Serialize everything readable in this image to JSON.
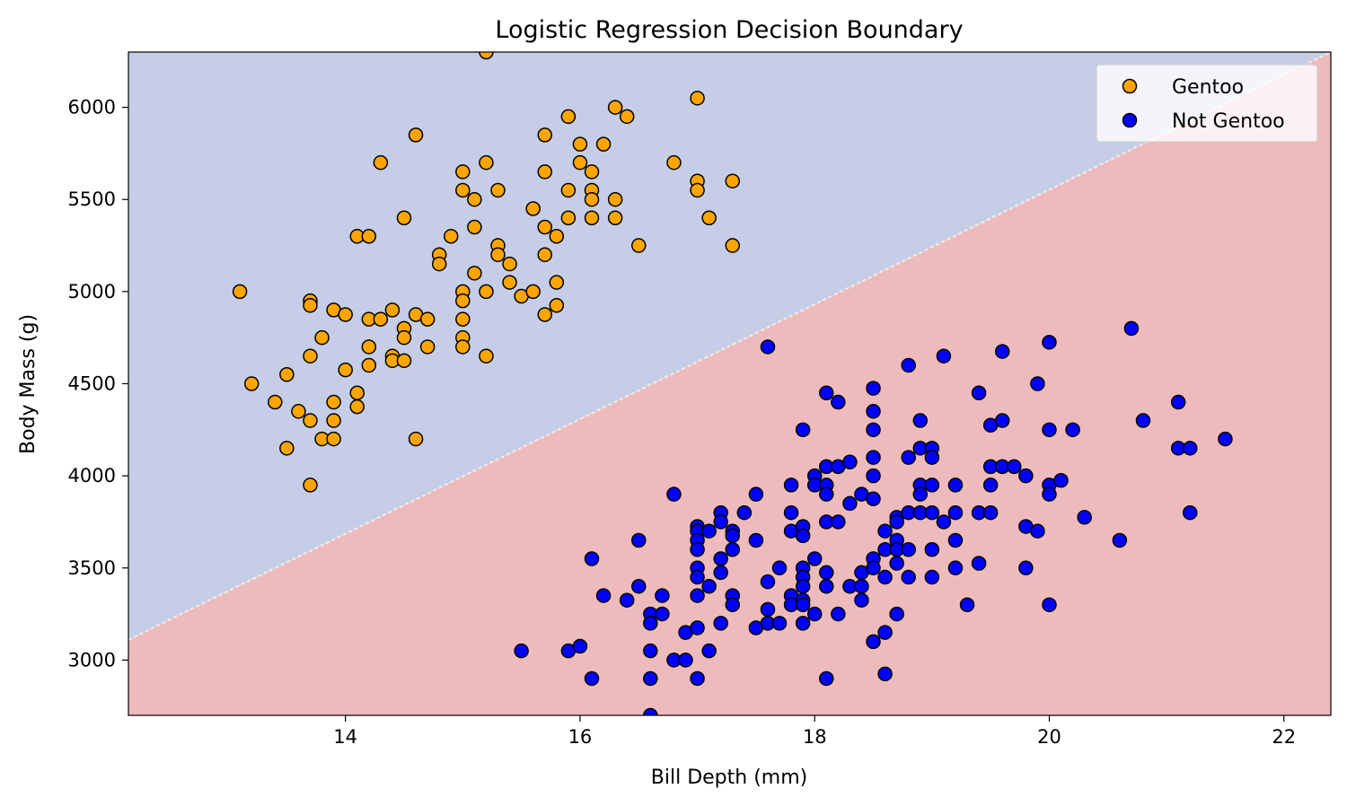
{
  "chart_data": {
    "type": "scatter",
    "title": "Logistic Regression Decision Boundary",
    "xlabel": "Bill Depth (mm)",
    "ylabel": "Body Mass (g)",
    "xlim": [
      12.15,
      22.4
    ],
    "ylim": [
      2700,
      6300
    ],
    "x_ticks": [
      14,
      16,
      18,
      20,
      22
    ],
    "y_ticks": [
      3000,
      3500,
      4000,
      4500,
      5000,
      5500,
      6000
    ],
    "grid": false,
    "legend_position": "top-right",
    "decision_boundary": {
      "line_points": [
        [
          12.15,
          3110
        ],
        [
          22.4,
          6300
        ]
      ],
      "region_above_color": "#c5cee6",
      "region_below_color": "#eebbbc"
    },
    "series": [
      {
        "name": "Gentoo",
        "color": "#ffa500",
        "edgecolor": "#000000",
        "points": [
          [
            13.1,
            5000
          ],
          [
            13.2,
            4500
          ],
          [
            13.4,
            4400
          ],
          [
            13.5,
            4550
          ],
          [
            13.5,
            4150
          ],
          [
            13.6,
            4350
          ],
          [
            13.7,
            4950
          ],
          [
            13.7,
            4925
          ],
          [
            13.7,
            4650
          ],
          [
            13.7,
            4300
          ],
          [
            13.7,
            3950
          ],
          [
            13.8,
            4750
          ],
          [
            13.8,
            4200
          ],
          [
            13.9,
            4900
          ],
          [
            13.9,
            4400
          ],
          [
            13.9,
            4300
          ],
          [
            13.9,
            4200
          ],
          [
            14.0,
            4875
          ],
          [
            14.0,
            4575
          ],
          [
            14.1,
            5300
          ],
          [
            14.1,
            4450
          ],
          [
            14.1,
            4375
          ],
          [
            14.2,
            5300
          ],
          [
            14.2,
            4850
          ],
          [
            14.2,
            4700
          ],
          [
            14.2,
            4600
          ],
          [
            14.3,
            5700
          ],
          [
            14.3,
            4850
          ],
          [
            14.4,
            4900
          ],
          [
            14.4,
            4650
          ],
          [
            14.4,
            4625
          ],
          [
            14.5,
            5400
          ],
          [
            14.5,
            4800
          ],
          [
            14.5,
            4750
          ],
          [
            14.5,
            4625
          ],
          [
            14.6,
            5850
          ],
          [
            14.6,
            4875
          ],
          [
            14.6,
            4200
          ],
          [
            14.7,
            4850
          ],
          [
            14.7,
            4700
          ],
          [
            14.8,
            5200
          ],
          [
            14.8,
            5150
          ],
          [
            14.9,
            5300
          ],
          [
            15.0,
            5650
          ],
          [
            15.0,
            5550
          ],
          [
            15.0,
            5000
          ],
          [
            15.0,
            4950
          ],
          [
            15.0,
            4850
          ],
          [
            15.0,
            4750
          ],
          [
            15.0,
            4700
          ],
          [
            15.1,
            5500
          ],
          [
            15.1,
            5350
          ],
          [
            15.1,
            5100
          ],
          [
            15.2,
            6300
          ],
          [
            15.2,
            5700
          ],
          [
            15.2,
            5000
          ],
          [
            15.2,
            4650
          ],
          [
            15.3,
            5550
          ],
          [
            15.3,
            5250
          ],
          [
            15.3,
            5200
          ],
          [
            15.4,
            5150
          ],
          [
            15.4,
            5050
          ],
          [
            15.5,
            4975
          ],
          [
            15.6,
            5450
          ],
          [
            15.6,
            5000
          ],
          [
            15.7,
            5850
          ],
          [
            15.7,
            5650
          ],
          [
            15.7,
            5350
          ],
          [
            15.7,
            5200
          ],
          [
            15.7,
            4875
          ],
          [
            15.8,
            5300
          ],
          [
            15.8,
            5050
          ],
          [
            15.8,
            4925
          ],
          [
            15.9,
            5950
          ],
          [
            15.9,
            5550
          ],
          [
            15.9,
            5400
          ],
          [
            16.0,
            5800
          ],
          [
            16.0,
            5700
          ],
          [
            16.1,
            5650
          ],
          [
            16.1,
            5550
          ],
          [
            16.1,
            5500
          ],
          [
            16.1,
            5400
          ],
          [
            16.2,
            5800
          ],
          [
            16.3,
            6000
          ],
          [
            16.3,
            5500
          ],
          [
            16.3,
            5400
          ],
          [
            16.4,
            5950
          ],
          [
            16.5,
            5250
          ],
          [
            16.8,
            5700
          ],
          [
            17.0,
            6050
          ],
          [
            17.0,
            5600
          ],
          [
            17.0,
            5550
          ],
          [
            17.1,
            5400
          ],
          [
            17.3,
            5600
          ],
          [
            17.3,
            5250
          ]
        ]
      },
      {
        "name": "Not Gentoo",
        "color": "#0000ff",
        "edgecolor": "#000000",
        "points": [
          [
            15.5,
            3050
          ],
          [
            15.9,
            3050
          ],
          [
            16.0,
            3075
          ],
          [
            16.1,
            3550
          ],
          [
            16.1,
            2900
          ],
          [
            16.2,
            3350
          ],
          [
            16.4,
            3325
          ],
          [
            16.5,
            3650
          ],
          [
            16.5,
            3400
          ],
          [
            16.6,
            3250
          ],
          [
            16.6,
            3200
          ],
          [
            16.6,
            3050
          ],
          [
            16.6,
            2900
          ],
          [
            16.6,
            2700
          ],
          [
            16.7,
            3350
          ],
          [
            16.7,
            3250
          ],
          [
            16.8,
            3900
          ],
          [
            16.8,
            3000
          ],
          [
            16.9,
            3150
          ],
          [
            16.9,
            3000
          ],
          [
            17.0,
            3725
          ],
          [
            17.0,
            3700
          ],
          [
            17.0,
            3650
          ],
          [
            17.0,
            3600
          ],
          [
            17.0,
            3500
          ],
          [
            17.0,
            3450
          ],
          [
            17.0,
            3350
          ],
          [
            17.0,
            3175
          ],
          [
            17.0,
            2900
          ],
          [
            17.1,
            3700
          ],
          [
            17.1,
            3400
          ],
          [
            17.1,
            3050
          ],
          [
            17.2,
            3800
          ],
          [
            17.2,
            3750
          ],
          [
            17.2,
            3550
          ],
          [
            17.2,
            3475
          ],
          [
            17.2,
            3200
          ],
          [
            17.3,
            3700
          ],
          [
            17.3,
            3675
          ],
          [
            17.3,
            3600
          ],
          [
            17.3,
            3350
          ],
          [
            17.3,
            3300
          ],
          [
            17.4,
            3800
          ],
          [
            17.5,
            3900
          ],
          [
            17.5,
            3650
          ],
          [
            17.5,
            3175
          ],
          [
            17.6,
            4700
          ],
          [
            17.6,
            3425
          ],
          [
            17.6,
            3275
          ],
          [
            17.6,
            3200
          ],
          [
            17.7,
            3500
          ],
          [
            17.7,
            3200
          ],
          [
            17.8,
            3950
          ],
          [
            17.8,
            3800
          ],
          [
            17.8,
            3700
          ],
          [
            17.8,
            3350
          ],
          [
            17.8,
            3300
          ],
          [
            17.9,
            4250
          ],
          [
            17.9,
            3725
          ],
          [
            17.9,
            3675
          ],
          [
            17.9,
            3500
          ],
          [
            17.9,
            3450
          ],
          [
            17.9,
            3400
          ],
          [
            17.9,
            3325
          ],
          [
            17.9,
            3300
          ],
          [
            17.9,
            3200
          ],
          [
            18.0,
            4000
          ],
          [
            18.0,
            3950
          ],
          [
            18.0,
            3550
          ],
          [
            18.0,
            3250
          ],
          [
            18.1,
            4450
          ],
          [
            18.1,
            4050
          ],
          [
            18.1,
            3950
          ],
          [
            18.1,
            3900
          ],
          [
            18.1,
            3750
          ],
          [
            18.1,
            3475
          ],
          [
            18.1,
            3400
          ],
          [
            18.1,
            2900
          ],
          [
            18.2,
            4400
          ],
          [
            18.2,
            4050
          ],
          [
            18.2,
            3750
          ],
          [
            18.2,
            3250
          ],
          [
            18.3,
            4075
          ],
          [
            18.3,
            3850
          ],
          [
            18.3,
            3400
          ],
          [
            18.4,
            3900
          ],
          [
            18.4,
            3475
          ],
          [
            18.4,
            3400
          ],
          [
            18.4,
            3325
          ],
          [
            18.5,
            4475
          ],
          [
            18.5,
            4350
          ],
          [
            18.5,
            4250
          ],
          [
            18.5,
            4100
          ],
          [
            18.5,
            4000
          ],
          [
            18.5,
            3875
          ],
          [
            18.5,
            3550
          ],
          [
            18.5,
            3500
          ],
          [
            18.5,
            3100
          ],
          [
            18.6,
            3700
          ],
          [
            18.6,
            3600
          ],
          [
            18.6,
            3450
          ],
          [
            18.6,
            3150
          ],
          [
            18.6,
            2925
          ],
          [
            18.7,
            3775
          ],
          [
            18.7,
            3750
          ],
          [
            18.7,
            3650
          ],
          [
            18.7,
            3600
          ],
          [
            18.7,
            3525
          ],
          [
            18.7,
            3250
          ],
          [
            18.8,
            4600
          ],
          [
            18.8,
            4100
          ],
          [
            18.8,
            3800
          ],
          [
            18.8,
            3600
          ],
          [
            18.8,
            3450
          ],
          [
            18.9,
            4300
          ],
          [
            18.9,
            4150
          ],
          [
            18.9,
            3950
          ],
          [
            18.9,
            3900
          ],
          [
            18.9,
            3800
          ],
          [
            19.0,
            4150
          ],
          [
            19.0,
            4100
          ],
          [
            19.0,
            3950
          ],
          [
            19.0,
            3800
          ],
          [
            19.0,
            3600
          ],
          [
            19.0,
            3450
          ],
          [
            19.1,
            4650
          ],
          [
            19.1,
            3750
          ],
          [
            19.2,
            3950
          ],
          [
            19.2,
            3800
          ],
          [
            19.2,
            3650
          ],
          [
            19.2,
            3500
          ],
          [
            19.3,
            3300
          ],
          [
            19.4,
            4450
          ],
          [
            19.4,
            3800
          ],
          [
            19.4,
            3525
          ],
          [
            19.5,
            4275
          ],
          [
            19.5,
            4050
          ],
          [
            19.5,
            3950
          ],
          [
            19.5,
            3800
          ],
          [
            19.6,
            4675
          ],
          [
            19.6,
            4300
          ],
          [
            19.6,
            4050
          ],
          [
            19.7,
            4050
          ],
          [
            19.8,
            4000
          ],
          [
            19.8,
            3725
          ],
          [
            19.8,
            3500
          ],
          [
            19.9,
            4500
          ],
          [
            19.9,
            3700
          ],
          [
            20.0,
            4725
          ],
          [
            20.0,
            4250
          ],
          [
            20.0,
            3950
          ],
          [
            20.0,
            3900
          ],
          [
            20.0,
            3300
          ],
          [
            20.1,
            3975
          ],
          [
            20.2,
            4250
          ],
          [
            20.3,
            3775
          ],
          [
            20.6,
            3650
          ],
          [
            20.7,
            4800
          ],
          [
            20.8,
            4300
          ],
          [
            21.1,
            4400
          ],
          [
            21.1,
            4150
          ],
          [
            21.2,
            4150
          ],
          [
            21.2,
            3800
          ],
          [
            21.5,
            4200
          ]
        ]
      }
    ]
  }
}
